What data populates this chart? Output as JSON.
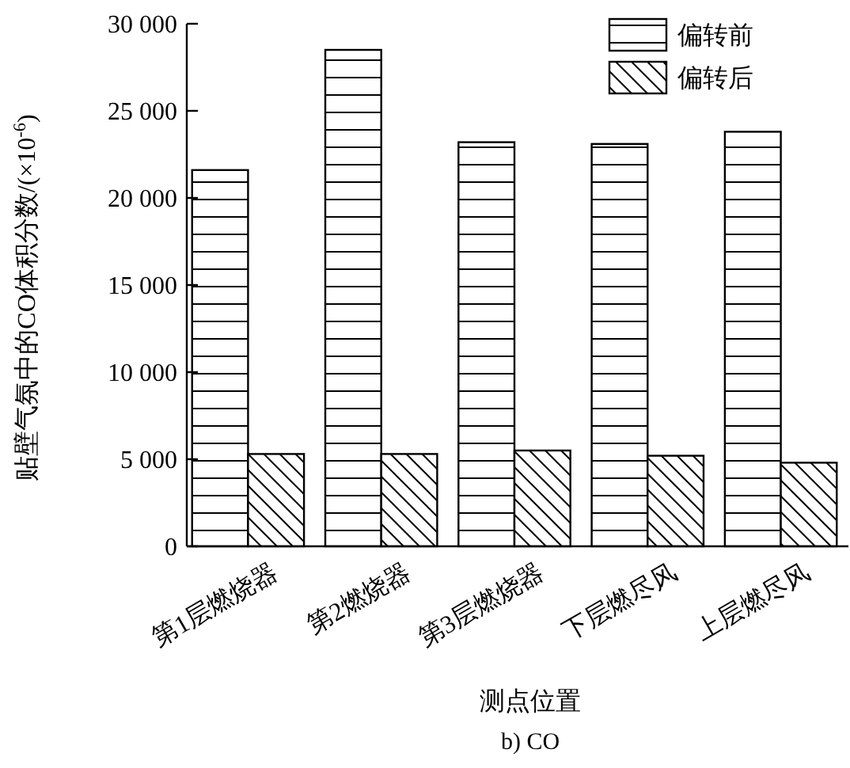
{
  "chart_data": {
    "type": "bar",
    "title": "b) CO",
    "xlabel": "测点位置",
    "ylabel": "贴壁气氛中的CO体积分数/(×10$^{-6}$)",
    "categories": [
      "第1层燃烧器",
      "第2燃烧器",
      "第3层燃烧器",
      "下层燃尽风",
      "上层燃尽风"
    ],
    "series": [
      {
        "name": "偏转前",
        "color": "#000000",
        "values": [
          21600,
          28500,
          23200,
          23100,
          23800
        ]
      },
      {
        "name": "偏转后",
        "color": "#000000",
        "values": [
          5300,
          5300,
          5500,
          5200,
          4800
        ]
      }
    ],
    "ylim": [
      0,
      30000
    ],
    "yticks": [
      {
        "value": 0,
        "label": "0"
      },
      {
        "value": 5000,
        "label": "5 000"
      },
      {
        "value": 10000,
        "label": "10 000"
      },
      {
        "value": 15000,
        "label": "15 000"
      },
      {
        "value": 20000,
        "label": "20 000"
      },
      {
        "value": 25000,
        "label": "25 000"
      },
      {
        "value": 30000,
        "label": "30 000"
      }
    ],
    "grid": false,
    "legend": "top right"
  }
}
